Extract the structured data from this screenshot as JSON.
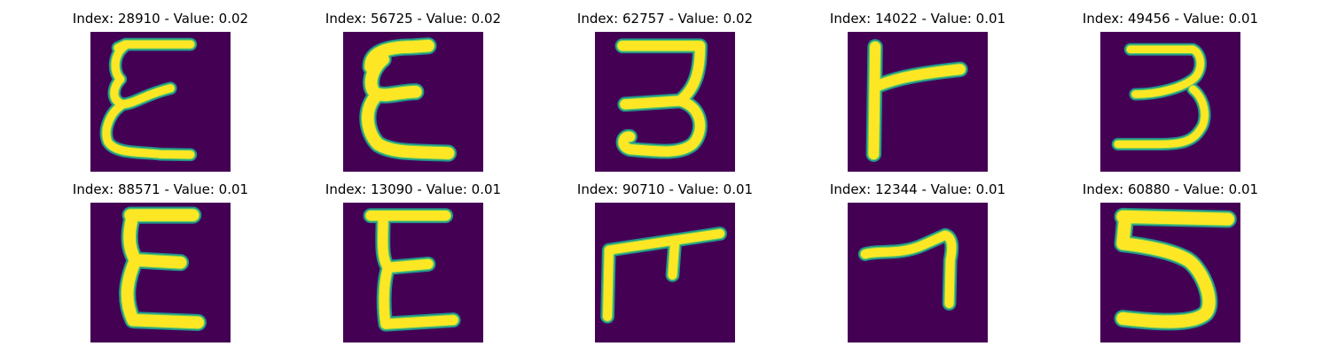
{
  "colors": {
    "background": "#440154",
    "stroke_edge": "#21918c",
    "stroke_mid": "#5ec962",
    "stroke_core": "#fde725"
  },
  "grid": [
    {
      "title": "Index: 28910 - Value: 0.02",
      "glyph": "epsilon-thin"
    },
    {
      "title": "Index: 56725 - Value: 0.02",
      "glyph": "epsilon-bold"
    },
    {
      "title": "Index: 62757 - Value: 0.02",
      "glyph": "three"
    },
    {
      "title": "Index: 14022 - Value: 0.01",
      "glyph": "gamma"
    },
    {
      "title": "Index: 49456 - Value: 0.01",
      "glyph": "three-thin"
    },
    {
      "title": "Index: 88571 - Value: 0.01",
      "glyph": "epsilon-sharp"
    },
    {
      "title": "Index: 13090 - Value: 0.01",
      "glyph": "epsilon-e"
    },
    {
      "title": "Index: 90710 - Value: 0.01",
      "glyph": "hook-f"
    },
    {
      "title": "Index: 12344 - Value: 0.01",
      "glyph": "seven"
    },
    {
      "title": "Index: 60880 - Value: 0.01",
      "glyph": "five"
    }
  ]
}
